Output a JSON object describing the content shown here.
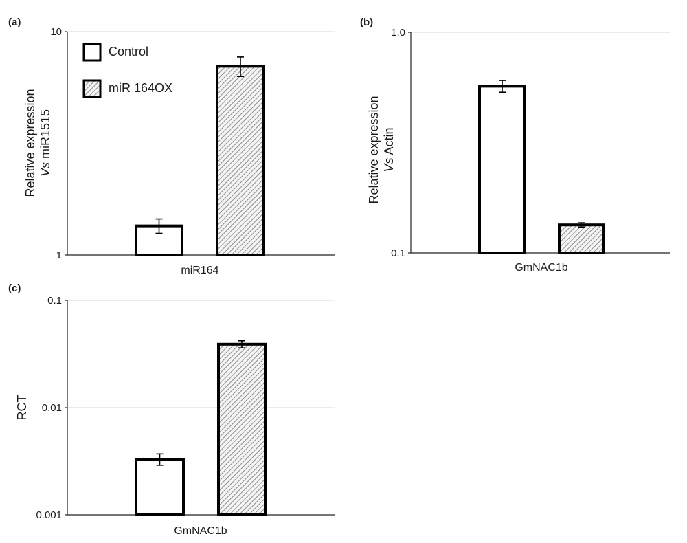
{
  "legend": {
    "series": [
      "Control",
      "miR 164OX"
    ]
  },
  "chart_data": [
    {
      "panel": "(a)",
      "type": "bar",
      "yscale": "log",
      "ylim": [
        1,
        10
      ],
      "yticks": [
        1,
        10
      ],
      "ytick_labels": [
        "1",
        "10"
      ],
      "ylabel_lines": [
        "Relative expression",
        "Vs miR1515"
      ],
      "categories": [
        "miR164"
      ],
      "series": [
        {
          "name": "Control",
          "pattern": "open",
          "values": [
            1.35
          ],
          "err": [
            0.1
          ]
        },
        {
          "name": "miR 164OX",
          "pattern": "hatched",
          "values": [
            7.0
          ],
          "err": [
            0.7
          ]
        }
      ]
    },
    {
      "panel": "(b)",
      "type": "bar",
      "yscale": "log",
      "ylim": [
        0.1,
        1.0
      ],
      "yticks": [
        0.1,
        1.0
      ],
      "ytick_labels": [
        "0.1",
        "1.0"
      ],
      "ylabel_lines": [
        "Relative expression",
        "Vs Actin"
      ],
      "categories": [
        "GmNAC1b"
      ],
      "series": [
        {
          "name": "Control",
          "pattern": "open",
          "values": [
            0.57
          ],
          "err": [
            0.035
          ]
        },
        {
          "name": "miR 164OX",
          "pattern": "hatched",
          "values": [
            0.134
          ],
          "err": [
            0.003
          ]
        }
      ]
    },
    {
      "panel": "(c)",
      "type": "bar",
      "yscale": "log",
      "ylim": [
        0.001,
        0.1
      ],
      "yticks": [
        0.001,
        0.01,
        0.1
      ],
      "ytick_labels": [
        "0.001",
        "0.01",
        "0.1"
      ],
      "ylabel_lines": [
        "RCT"
      ],
      "categories": [
        "GmNAC1b"
      ],
      "series": [
        {
          "name": "Control",
          "pattern": "open",
          "values": [
            0.0033
          ],
          "err": [
            0.0004
          ]
        },
        {
          "name": "miR 164OX",
          "pattern": "hatched",
          "values": [
            0.039
          ],
          "err": [
            0.003
          ]
        }
      ]
    }
  ]
}
